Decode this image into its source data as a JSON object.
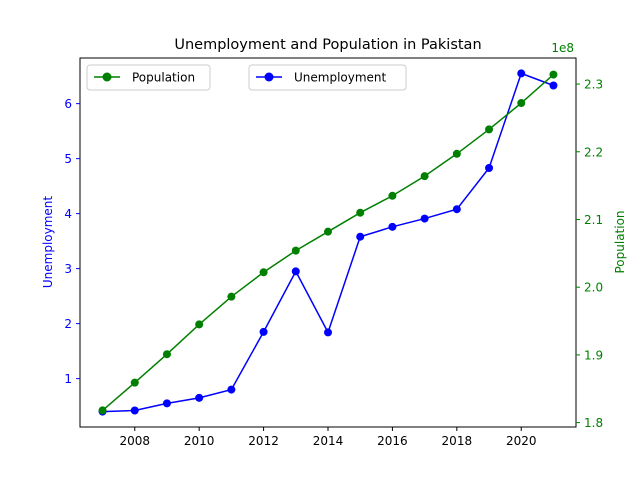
{
  "chart_data": {
    "type": "line",
    "title": "Unemployment and Population in Pakistan",
    "x": [
      2007,
      2008,
      2009,
      2010,
      2011,
      2012,
      2013,
      2014,
      2015,
      2016,
      2017,
      2018,
      2019,
      2020,
      2021
    ],
    "x_ticks": [
      "2008",
      "2010",
      "2012",
      "2014",
      "2016",
      "2018",
      "2020"
    ],
    "grid": false,
    "series": [
      {
        "name": "Unemployment",
        "axis": "left",
        "color": "#0000ff",
        "values": [
          0.4,
          0.42,
          0.55,
          0.65,
          0.8,
          1.85,
          2.95,
          1.84,
          3.58,
          3.76,
          3.91,
          4.08,
          4.83,
          6.55,
          6.33
        ]
      },
      {
        "name": "Population",
        "axis": "right",
        "color": "#008000",
        "values": [
          181800000,
          185900000,
          190100000,
          194500000,
          198600000,
          202200000,
          205400000,
          208200000,
          211000000,
          213500000,
          216400000,
          219700000,
          223300000,
          227200000,
          231400000
        ]
      }
    ],
    "left_axis": {
      "label": "Unemployment",
      "color": "#0000ff",
      "ylim": [
        0.12,
        6.83
      ],
      "ticks": [
        "1",
        "2",
        "3",
        "4",
        "5",
        "6"
      ]
    },
    "right_axis": {
      "label": "Population",
      "color": "#008000",
      "offset_text": "1e8",
      "ylim": [
        179350000,
        233850000
      ],
      "ticks": [
        "1.8",
        "1.9",
        "2.0",
        "2.1",
        "2.2",
        "2.3"
      ]
    },
    "xlim": [
      2006.3,
      2021.7
    ],
    "legends": [
      {
        "entries": [
          "Population"
        ],
        "placement": "upper-left"
      },
      {
        "entries": [
          "Unemployment"
        ],
        "placement": "upper-center"
      }
    ]
  }
}
